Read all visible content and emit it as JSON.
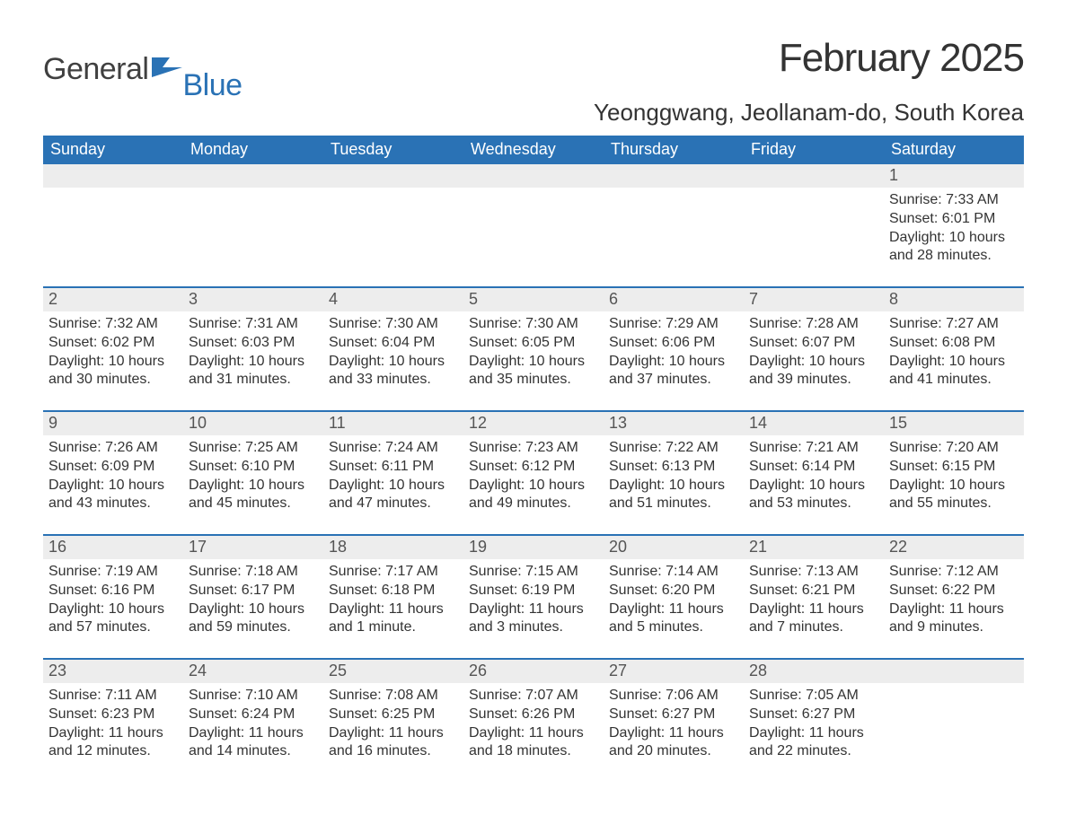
{
  "brand": {
    "name_main": "General",
    "name_sub": "Blue",
    "logo_color": "#2a72b5",
    "text_main_color": "#404040"
  },
  "title": "February 2025",
  "location": "Yeonggwang, Jeollanam-do, South Korea",
  "colors": {
    "header_bg": "#2a72b5",
    "header_text": "#ffffff",
    "daynum_bg": "#ededed",
    "text": "#333333",
    "rule": "#2a72b5",
    "background": "#ffffff"
  },
  "typography": {
    "title_fontsize": 44,
    "location_fontsize": 26,
    "weekday_fontsize": 18,
    "daynum_fontsize": 18,
    "detail_fontsize": 16
  },
  "weekdays": [
    "Sunday",
    "Monday",
    "Tuesday",
    "Wednesday",
    "Thursday",
    "Friday",
    "Saturday"
  ],
  "weeks": [
    [
      {
        "num": "",
        "sunrise": "",
        "sunset": "",
        "daylight": ""
      },
      {
        "num": "",
        "sunrise": "",
        "sunset": "",
        "daylight": ""
      },
      {
        "num": "",
        "sunrise": "",
        "sunset": "",
        "daylight": ""
      },
      {
        "num": "",
        "sunrise": "",
        "sunset": "",
        "daylight": ""
      },
      {
        "num": "",
        "sunrise": "",
        "sunset": "",
        "daylight": ""
      },
      {
        "num": "",
        "sunrise": "",
        "sunset": "",
        "daylight": ""
      },
      {
        "num": "1",
        "sunrise": "Sunrise: 7:33 AM",
        "sunset": "Sunset: 6:01 PM",
        "daylight": "Daylight: 10 hours and 28 minutes."
      }
    ],
    [
      {
        "num": "2",
        "sunrise": "Sunrise: 7:32 AM",
        "sunset": "Sunset: 6:02 PM",
        "daylight": "Daylight: 10 hours and 30 minutes."
      },
      {
        "num": "3",
        "sunrise": "Sunrise: 7:31 AM",
        "sunset": "Sunset: 6:03 PM",
        "daylight": "Daylight: 10 hours and 31 minutes."
      },
      {
        "num": "4",
        "sunrise": "Sunrise: 7:30 AM",
        "sunset": "Sunset: 6:04 PM",
        "daylight": "Daylight: 10 hours and 33 minutes."
      },
      {
        "num": "5",
        "sunrise": "Sunrise: 7:30 AM",
        "sunset": "Sunset: 6:05 PM",
        "daylight": "Daylight: 10 hours and 35 minutes."
      },
      {
        "num": "6",
        "sunrise": "Sunrise: 7:29 AM",
        "sunset": "Sunset: 6:06 PM",
        "daylight": "Daylight: 10 hours and 37 minutes."
      },
      {
        "num": "7",
        "sunrise": "Sunrise: 7:28 AM",
        "sunset": "Sunset: 6:07 PM",
        "daylight": "Daylight: 10 hours and 39 minutes."
      },
      {
        "num": "8",
        "sunrise": "Sunrise: 7:27 AM",
        "sunset": "Sunset: 6:08 PM",
        "daylight": "Daylight: 10 hours and 41 minutes."
      }
    ],
    [
      {
        "num": "9",
        "sunrise": "Sunrise: 7:26 AM",
        "sunset": "Sunset: 6:09 PM",
        "daylight": "Daylight: 10 hours and 43 minutes."
      },
      {
        "num": "10",
        "sunrise": "Sunrise: 7:25 AM",
        "sunset": "Sunset: 6:10 PM",
        "daylight": "Daylight: 10 hours and 45 minutes."
      },
      {
        "num": "11",
        "sunrise": "Sunrise: 7:24 AM",
        "sunset": "Sunset: 6:11 PM",
        "daylight": "Daylight: 10 hours and 47 minutes."
      },
      {
        "num": "12",
        "sunrise": "Sunrise: 7:23 AM",
        "sunset": "Sunset: 6:12 PM",
        "daylight": "Daylight: 10 hours and 49 minutes."
      },
      {
        "num": "13",
        "sunrise": "Sunrise: 7:22 AM",
        "sunset": "Sunset: 6:13 PM",
        "daylight": "Daylight: 10 hours and 51 minutes."
      },
      {
        "num": "14",
        "sunrise": "Sunrise: 7:21 AM",
        "sunset": "Sunset: 6:14 PM",
        "daylight": "Daylight: 10 hours and 53 minutes."
      },
      {
        "num": "15",
        "sunrise": "Sunrise: 7:20 AM",
        "sunset": "Sunset: 6:15 PM",
        "daylight": "Daylight: 10 hours and 55 minutes."
      }
    ],
    [
      {
        "num": "16",
        "sunrise": "Sunrise: 7:19 AM",
        "sunset": "Sunset: 6:16 PM",
        "daylight": "Daylight: 10 hours and 57 minutes."
      },
      {
        "num": "17",
        "sunrise": "Sunrise: 7:18 AM",
        "sunset": "Sunset: 6:17 PM",
        "daylight": "Daylight: 10 hours and 59 minutes."
      },
      {
        "num": "18",
        "sunrise": "Sunrise: 7:17 AM",
        "sunset": "Sunset: 6:18 PM",
        "daylight": "Daylight: 11 hours and 1 minute."
      },
      {
        "num": "19",
        "sunrise": "Sunrise: 7:15 AM",
        "sunset": "Sunset: 6:19 PM",
        "daylight": "Daylight: 11 hours and 3 minutes."
      },
      {
        "num": "20",
        "sunrise": "Sunrise: 7:14 AM",
        "sunset": "Sunset: 6:20 PM",
        "daylight": "Daylight: 11 hours and 5 minutes."
      },
      {
        "num": "21",
        "sunrise": "Sunrise: 7:13 AM",
        "sunset": "Sunset: 6:21 PM",
        "daylight": "Daylight: 11 hours and 7 minutes."
      },
      {
        "num": "22",
        "sunrise": "Sunrise: 7:12 AM",
        "sunset": "Sunset: 6:22 PM",
        "daylight": "Daylight: 11 hours and 9 minutes."
      }
    ],
    [
      {
        "num": "23",
        "sunrise": "Sunrise: 7:11 AM",
        "sunset": "Sunset: 6:23 PM",
        "daylight": "Daylight: 11 hours and 12 minutes."
      },
      {
        "num": "24",
        "sunrise": "Sunrise: 7:10 AM",
        "sunset": "Sunset: 6:24 PM",
        "daylight": "Daylight: 11 hours and 14 minutes."
      },
      {
        "num": "25",
        "sunrise": "Sunrise: 7:08 AM",
        "sunset": "Sunset: 6:25 PM",
        "daylight": "Daylight: 11 hours and 16 minutes."
      },
      {
        "num": "26",
        "sunrise": "Sunrise: 7:07 AM",
        "sunset": "Sunset: 6:26 PM",
        "daylight": "Daylight: 11 hours and 18 minutes."
      },
      {
        "num": "27",
        "sunrise": "Sunrise: 7:06 AM",
        "sunset": "Sunset: 6:27 PM",
        "daylight": "Daylight: 11 hours and 20 minutes."
      },
      {
        "num": "28",
        "sunrise": "Sunrise: 7:05 AM",
        "sunset": "Sunset: 6:27 PM",
        "daylight": "Daylight: 11 hours and 22 minutes."
      },
      {
        "num": "",
        "sunrise": "",
        "sunset": "",
        "daylight": ""
      }
    ]
  ]
}
